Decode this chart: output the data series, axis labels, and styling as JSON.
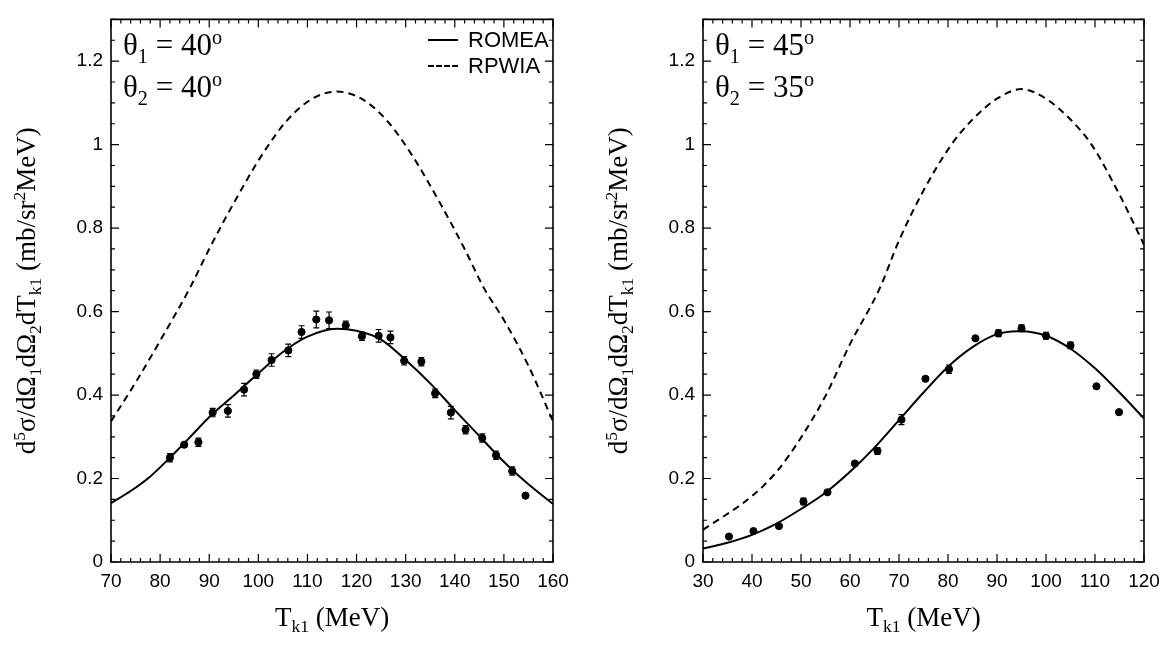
{
  "chart_data": [
    {
      "type": "scatter",
      "xlabel": "T$_{k1}$ (MeV)",
      "ylabel": "d$^{5}$σ/dΩ$_{1}$dΩ$_{2}$dT$_{k1}$ (mb/sr$^{2}$MeV)",
      "annotations": [
        "θ$_{1}$ = 40$^{o}$",
        "θ$_{2}$ = 40$^{o}$"
      ],
      "legend": "top right",
      "xlim": [
        70,
        160
      ],
      "ylim": [
        0,
        1.3
      ],
      "xticks": [
        70,
        {
          "value": 72,
          "label": null
        },
        {
          "value": 74,
          "label": null
        },
        {
          "value": 76,
          "label": null
        },
        {
          "value": 78,
          "label": null
        },
        80,
        {
          "value": 82,
          "label": null
        },
        {
          "value": 84,
          "label": null
        },
        {
          "value": 86,
          "label": null
        },
        {
          "value": 88,
          "label": null
        },
        90,
        {
          "value": 92,
          "label": null
        },
        {
          "value": 94,
          "label": null
        },
        {
          "value": 96,
          "label": null
        },
        {
          "value": 98,
          "label": null
        },
        100,
        {
          "value": 102,
          "label": null
        },
        {
          "value": 104,
          "label": null
        },
        {
          "value": 106,
          "label": null
        },
        {
          "value": 108,
          "label": null
        },
        110,
        {
          "value": 112,
          "label": null
        },
        {
          "value": 114,
          "label": null
        },
        {
          "value": 116,
          "label": null
        },
        {
          "value": 118,
          "label": null
        },
        120,
        {
          "value": 122,
          "label": null
        },
        {
          "value": 124,
          "label": null
        },
        {
          "value": 126,
          "label": null
        },
        {
          "value": 128,
          "label": null
        },
        130,
        {
          "value": 132,
          "label": null
        },
        {
          "value": 134,
          "label": null
        },
        {
          "value": 136,
          "label": null
        },
        {
          "value": 138,
          "label": null
        },
        140,
        {
          "value": 142,
          "label": null
        },
        {
          "value": 144,
          "label": null
        },
        {
          "value": 146,
          "label": null
        },
        {
          "value": 148,
          "label": null
        },
        150,
        {
          "value": 152,
          "label": null
        },
        {
          "value": 154,
          "label": null
        },
        {
          "value": 156,
          "label": null
        },
        {
          "value": 158,
          "label": null
        },
        160
      ],
      "yticks": [
        0,
        {
          "value": 0.05,
          "label": null
        },
        {
          "value": 0.1,
          "label": null
        },
        {
          "value": 0.15,
          "label": null
        },
        0.2,
        {
          "value": 0.25,
          "label": null
        },
        {
          "value": 0.3,
          "label": null
        },
        {
          "value": 0.35,
          "label": null
        },
        0.4,
        {
          "value": 0.45,
          "label": null
        },
        {
          "value": 0.5,
          "label": null
        },
        {
          "value": 0.55,
          "label": null
        },
        0.6,
        {
          "value": 0.65,
          "label": null
        },
        {
          "value": 0.7,
          "label": null
        },
        {
          "value": 0.75,
          "label": null
        },
        0.8,
        {
          "value": 0.85,
          "label": null
        },
        {
          "value": 0.9,
          "label": null
        },
        {
          "value": 0.95,
          "label": null
        },
        1,
        {
          "value": 1.05,
          "label": null
        },
        {
          "value": 1.1,
          "label": null
        },
        {
          "value": 1.15,
          "label": null
        },
        1.2,
        {
          "value": 1.25,
          "label": null
        },
        {
          "value": 1.3,
          "label": null
        }
      ],
      "series": [
        {
          "color": "#000000",
          "marker": "circle",
          "x": [
            82.0,
            84.9,
            87.8,
            90.7,
            93.8,
            97.1,
            99.6,
            102.7,
            106.1,
            108.8,
            111.8,
            114.4,
            117.8,
            121.1,
            124.5,
            126.9,
            129.7,
            133.2,
            136.0,
            139.2,
            142.2,
            145.6,
            148.4,
            151.7,
            154.4
          ],
          "values": [
            0.25,
            0.281,
            0.287,
            0.358,
            0.362,
            0.413,
            0.45,
            0.484,
            0.507,
            0.551,
            0.581,
            0.579,
            0.567,
            0.541,
            0.542,
            0.538,
            0.482,
            0.48,
            0.404,
            0.358,
            0.317,
            0.297,
            0.256,
            0.218,
            0.159
          ],
          "errors": [
            0.01,
            0.005,
            0.01,
            0.01,
            0.015,
            0.015,
            0.01,
            0.015,
            0.015,
            0.015,
            0.02,
            0.02,
            0.01,
            0.01,
            0.015,
            0.015,
            0.01,
            0.01,
            0.01,
            0.015,
            0.01,
            0.01,
            0.01,
            0.01,
            null
          ]
        },
        {
          "type": "line",
          "name": "ROMEA",
          "color": "#000000",
          "marker": "none",
          "line_style": "solid",
          "x": [
            70,
            74,
            78,
            82,
            86,
            90.7,
            95,
            100,
            105,
            110,
            116,
            120,
            125,
            130,
            135,
            140,
            145,
            150,
            155,
            160
          ],
          "values": [
            0.141,
            0.17,
            0.205,
            0.25,
            0.298,
            0.355,
            0.399,
            0.452,
            0.503,
            0.54,
            0.559,
            0.554,
            0.533,
            0.484,
            0.428,
            0.364,
            0.302,
            0.24,
            0.186,
            0.139
          ]
        },
        {
          "type": "line",
          "name": "RPWIA",
          "color": "#000000",
          "marker": "none",
          "line_style": "dashed",
          "x": [
            70,
            75,
            80,
            86,
            90,
            95,
            101,
            106,
            111,
            116,
            121,
            126,
            131,
            137,
            142,
            146,
            150,
            155,
            160
          ],
          "values": [
            0.337,
            0.43,
            0.53,
            0.655,
            0.75,
            0.86,
            0.98,
            1.06,
            1.11,
            1.127,
            1.11,
            1.06,
            0.98,
            0.86,
            0.75,
            0.655,
            0.58,
            0.47,
            0.337
          ]
        }
      ]
    },
    {
      "type": "scatter",
      "xlabel": "T$_{k1}$ (MeV)",
      "ylabel": "d$^{5}$σ/dΩ$_{1}$dΩ$_{2}$dT$_{k1}$ (mb/sr$^{2}$MeV)",
      "annotations": [
        "θ$_{1}$ = 45$^{o}$",
        "θ$_{2}$ = 35$^{o}$"
      ],
      "xlim": [
        30,
        120
      ],
      "ylim": [
        0,
        1.3
      ],
      "xticks": [
        30,
        {
          "value": 32,
          "label": null
        },
        {
          "value": 34,
          "label": null
        },
        {
          "value": 36,
          "label": null
        },
        {
          "value": 38,
          "label": null
        },
        40,
        {
          "value": 42,
          "label": null
        },
        {
          "value": 44,
          "label": null
        },
        {
          "value": 46,
          "label": null
        },
        {
          "value": 48,
          "label": null
        },
        50,
        {
          "value": 52,
          "label": null
        },
        {
          "value": 54,
          "label": null
        },
        {
          "value": 56,
          "label": null
        },
        {
          "value": 58,
          "label": null
        },
        60,
        {
          "value": 62,
          "label": null
        },
        {
          "value": 64,
          "label": null
        },
        {
          "value": 66,
          "label": null
        },
        {
          "value": 68,
          "label": null
        },
        70,
        {
          "value": 72,
          "label": null
        },
        {
          "value": 74,
          "label": null
        },
        {
          "value": 76,
          "label": null
        },
        {
          "value": 78,
          "label": null
        },
        80,
        {
          "value": 82,
          "label": null
        },
        {
          "value": 84,
          "label": null
        },
        {
          "value": 86,
          "label": null
        },
        {
          "value": 88,
          "label": null
        },
        90,
        {
          "value": 92,
          "label": null
        },
        {
          "value": 94,
          "label": null
        },
        {
          "value": 96,
          "label": null
        },
        {
          "value": 98,
          "label": null
        },
        100,
        {
          "value": 102,
          "label": null
        },
        {
          "value": 104,
          "label": null
        },
        {
          "value": 106,
          "label": null
        },
        {
          "value": 108,
          "label": null
        },
        110,
        {
          "value": 112,
          "label": null
        },
        {
          "value": 114,
          "label": null
        },
        {
          "value": 116,
          "label": null
        },
        {
          "value": 118,
          "label": null
        },
        120
      ],
      "yticks": [
        0,
        {
          "value": 0.05,
          "label": null
        },
        {
          "value": 0.1,
          "label": null
        },
        {
          "value": 0.15,
          "label": null
        },
        0.2,
        {
          "value": 0.25,
          "label": null
        },
        {
          "value": 0.3,
          "label": null
        },
        {
          "value": 0.35,
          "label": null
        },
        0.4,
        {
          "value": 0.45,
          "label": null
        },
        {
          "value": 0.5,
          "label": null
        },
        {
          "value": 0.55,
          "label": null
        },
        0.6,
        {
          "value": 0.65,
          "label": null
        },
        {
          "value": 0.7,
          "label": null
        },
        {
          "value": 0.75,
          "label": null
        },
        0.8,
        {
          "value": 0.85,
          "label": null
        },
        {
          "value": 0.9,
          "label": null
        },
        {
          "value": 0.95,
          "label": null
        },
        1,
        {
          "value": 1.05,
          "label": null
        },
        {
          "value": 1.1,
          "label": null
        },
        {
          "value": 1.15,
          "label": null
        },
        1.2,
        {
          "value": 1.25,
          "label": null
        },
        {
          "value": 1.3,
          "label": null
        }
      ],
      "series": [
        {
          "color": "#000000",
          "marker": "circle",
          "x": [
            35.3,
            40.3,
            45.5,
            50.5,
            55.4,
            61.0,
            65.6,
            70.5,
            75.4,
            80.2,
            85.6,
            90.3,
            95.0,
            100.0,
            105.0,
            110.3,
            114.9
          ],
          "values": [
            0.061,
            0.074,
            0.086,
            0.145,
            0.167,
            0.236,
            0.266,
            0.341,
            0.439,
            0.462,
            0.536,
            0.548,
            0.56,
            0.542,
            0.519,
            0.421,
            0.359
          ],
          "errors": [
            null,
            null,
            null,
            0.008,
            null,
            null,
            0.008,
            0.012,
            null,
            0.01,
            null,
            0.008,
            0.008,
            0.008,
            0.008,
            null,
            null
          ]
        },
        {
          "type": "line",
          "color": "#000000",
          "marker": "none",
          "line_style": "solid",
          "x": [
            30,
            35,
            40,
            45,
            50,
            55,
            60,
            65,
            70,
            75,
            80,
            85,
            90,
            95,
            100,
            105,
            110,
            115,
            120
          ],
          "values": [
            0.032,
            0.046,
            0.065,
            0.092,
            0.127,
            0.166,
            0.216,
            0.274,
            0.34,
            0.406,
            0.468,
            0.515,
            0.546,
            0.553,
            0.542,
            0.511,
            0.464,
            0.406,
            0.344
          ]
        },
        {
          "type": "line",
          "color": "#000000",
          "marker": "none",
          "line_style": "dashed",
          "x": [
            30,
            40,
            45,
            50,
            55,
            60,
            66,
            70,
            75,
            80.7,
            85,
            90,
            95,
            100,
            105,
            109.3,
            115,
            120
          ],
          "values": [
            0.077,
            0.158,
            0.216,
            0.298,
            0.398,
            0.522,
            0.654,
            0.77,
            0.89,
            1.0,
            1.06,
            1.11,
            1.133,
            1.11,
            1.06,
            1.0,
            0.88,
            0.76
          ]
        }
      ]
    }
  ]
}
